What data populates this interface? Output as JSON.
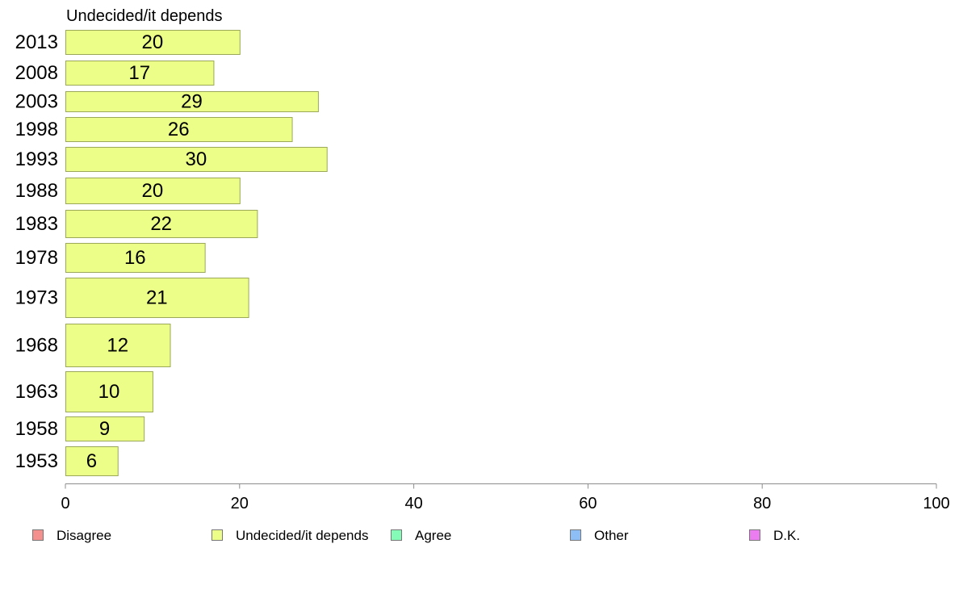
{
  "chart_data": {
    "type": "bar",
    "orientation": "horizontal",
    "title": "Undecided/it depends",
    "categories": [
      "2013",
      "2008",
      "2003",
      "1998",
      "1993",
      "1988",
      "1983",
      "1978",
      "1973",
      "1968",
      "1963",
      "1958",
      "1953"
    ],
    "series": [
      {
        "name": "Undecided/it depends",
        "values": [
          20,
          17,
          29,
          26,
          30,
          20,
          22,
          16,
          21,
          12,
          10,
          9,
          6
        ]
      }
    ],
    "xlim": [
      0,
      100
    ],
    "xticks": [
      0,
      20,
      40,
      60,
      80,
      100
    ],
    "grid": false,
    "legend": [
      {
        "label": "Disagree",
        "color": "#f4908e"
      },
      {
        "label": "Undecided/it depends",
        "color": "#ecfe88"
      },
      {
        "label": "Agree",
        "color": "#84fbb6"
      },
      {
        "label": "Other",
        "color": "#8dbef5"
      },
      {
        "label": "D.K.",
        "color": "#ec7df0"
      }
    ],
    "legend_position": "bottom",
    "bar_color": "#ecfe88",
    "bar_stroke": "#9aa858"
  }
}
